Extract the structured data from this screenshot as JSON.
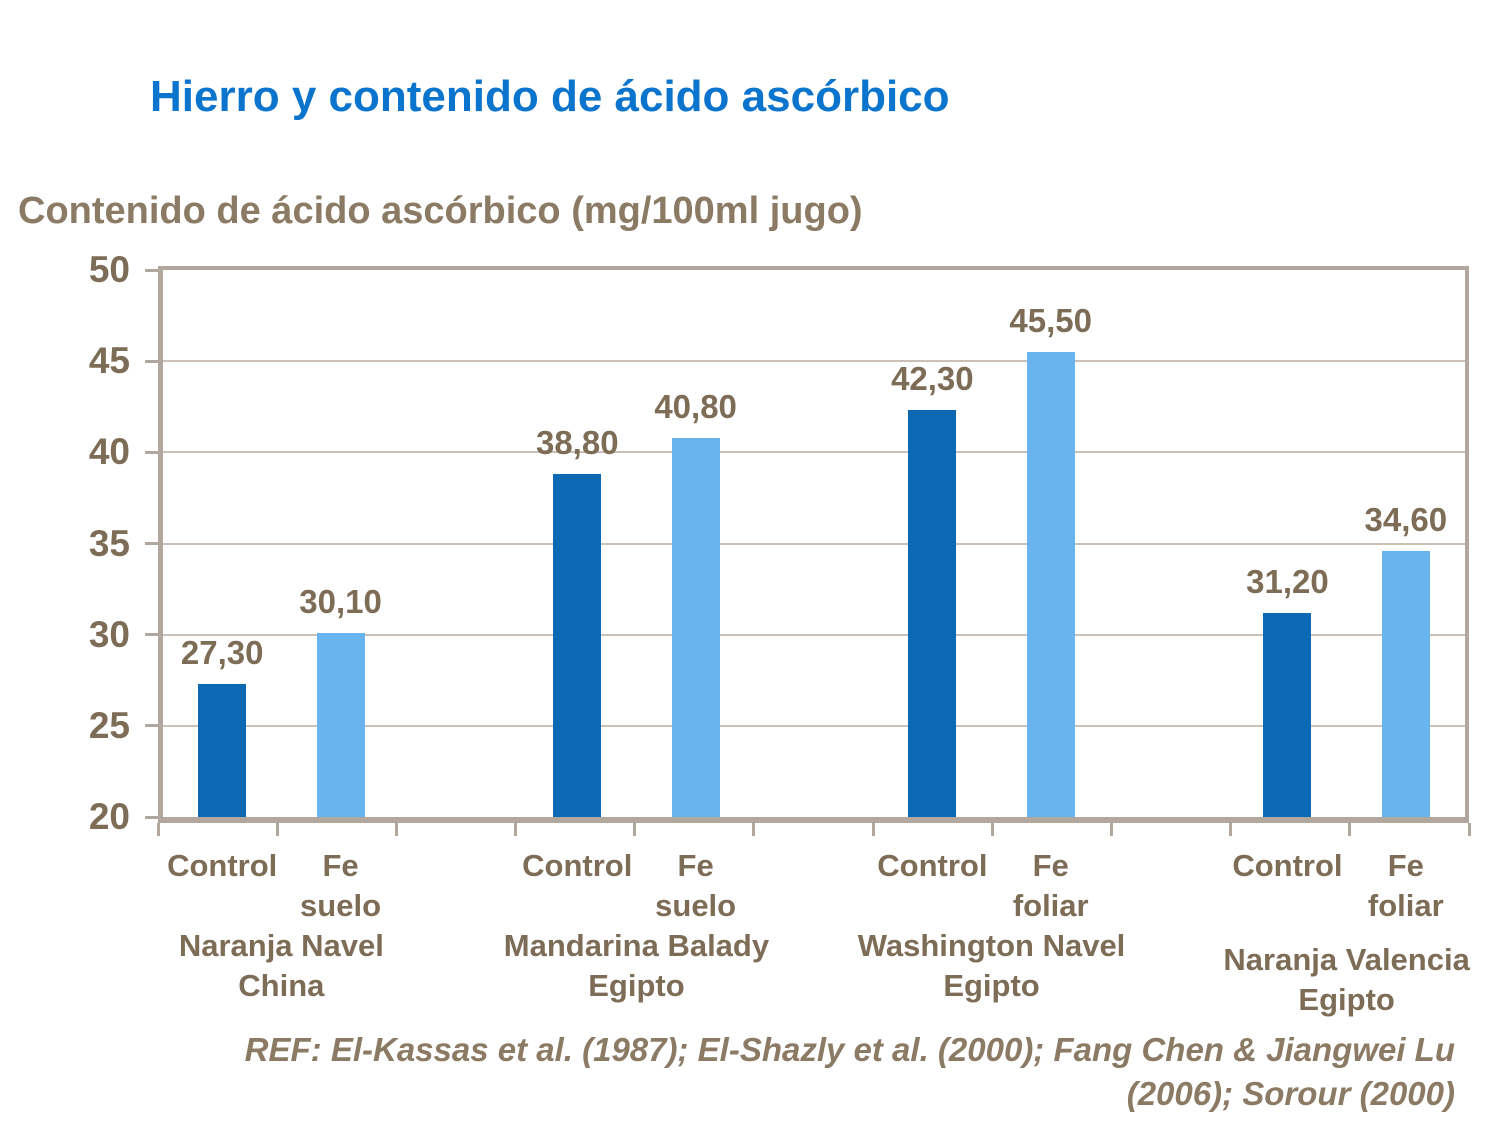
{
  "page": {
    "title": "Hierro y contenido de ácido ascórbico",
    "axis_caption": "Contenido de ácido ascórbico (mg/100ml jugo)",
    "reference_lines": [
      "REF: El-Kassas et al. (1987); El-Shazly et al. (2000); Fang Chen & Jiangwei Lu",
      "(2006); Sorour (2000)"
    ]
  },
  "colors": {
    "title_blue": "#0b74cc",
    "text_brown": "#7d6c56",
    "caption_brown": "#8b7a64",
    "frame_tan": "#b1a79c",
    "gridline_tan": "#c9c1b7",
    "bar_control_dark_blue": "#0d69b4",
    "bar_fe_light_blue": "#67b4ef"
  },
  "chart_data": {
    "type": "bar",
    "title": "Hierro y contenido de ácido ascórbico",
    "ylabel": "Contenido de ácido ascórbico (mg/100ml jugo)",
    "xlabel": "",
    "ylim": [
      20,
      50
    ],
    "yticks": [
      20,
      25,
      30,
      35,
      40,
      45,
      50
    ],
    "grid": true,
    "legend_position": "none",
    "decimal_style": "comma",
    "series": [
      {
        "name": "Control",
        "color_key": "bar_control_dark_blue"
      },
      {
        "name": "Fe",
        "color_key": "bar_fe_light_blue"
      }
    ],
    "groups": [
      {
        "category_lines": [
          "Naranja Navel",
          "China"
        ],
        "bars": [
          {
            "series": 0,
            "x_label_lines": [
              "Control"
            ],
            "value": 27.3,
            "value_label": "27,30"
          },
          {
            "series": 1,
            "x_label_lines": [
              "Fe",
              "suelo"
            ],
            "value": 30.1,
            "value_label": "30,10"
          }
        ]
      },
      {
        "category_lines": [
          "Mandarina Balady",
          "Egipto"
        ],
        "bars": [
          {
            "series": 0,
            "x_label_lines": [
              "Control"
            ],
            "value": 38.8,
            "value_label": "38,80"
          },
          {
            "series": 1,
            "x_label_lines": [
              "Fe",
              "suelo"
            ],
            "value": 40.8,
            "value_label": "40,80"
          }
        ]
      },
      {
        "category_lines": [
          "Washington Navel",
          "Egipto"
        ],
        "bars": [
          {
            "series": 0,
            "x_label_lines": [
              "Control"
            ],
            "value": 42.3,
            "value_label": "42,30"
          },
          {
            "series": 1,
            "x_label_lines": [
              "Fe",
              "foliar"
            ],
            "value": 45.5,
            "value_label": "45,50"
          }
        ]
      },
      {
        "category_lines": [
          "Naranja Valencia",
          "Egipto"
        ],
        "bars": [
          {
            "series": 0,
            "x_label_lines": [
              "Control"
            ],
            "value": 31.2,
            "value_label": "31,20"
          },
          {
            "series": 1,
            "x_label_lines": [
              "Fe",
              "foliar"
            ],
            "value": 34.6,
            "value_label": "34,60"
          }
        ]
      }
    ]
  }
}
